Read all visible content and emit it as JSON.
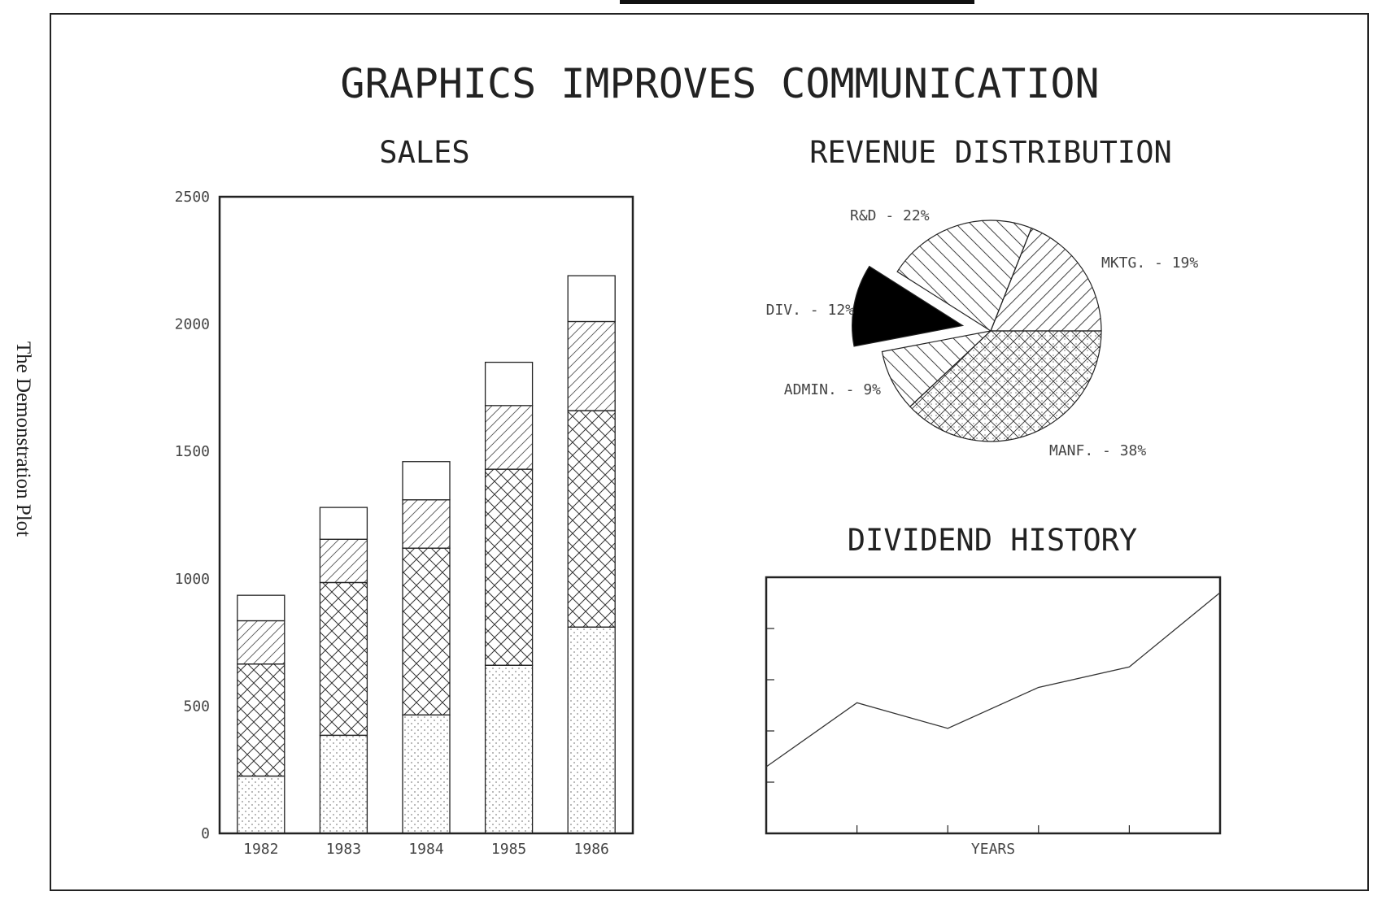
{
  "page": {
    "side_caption": "The Demonstration Plot",
    "main_title": "GRAPHICS IMPROVES COMMUNICATION"
  },
  "chart_data": [
    {
      "type": "bar",
      "stacked": true,
      "title": "SALES",
      "categories": [
        "1982",
        "1983",
        "1984",
        "1985",
        "1986"
      ],
      "ylim": [
        0,
        2500
      ],
      "yticks": [
        "0",
        "500",
        "1000",
        "1500",
        "2000",
        "2500"
      ],
      "series": [
        {
          "values": [
            225,
            385,
            465,
            660,
            810
          ],
          "pattern": "dots"
        },
        {
          "values": [
            440,
            600,
            655,
            770,
            850
          ],
          "pattern": "crosshatch"
        },
        {
          "values": [
            170,
            170,
            190,
            250,
            350
          ],
          "pattern": "diagonal"
        },
        {
          "values": [
            100,
            125,
            150,
            170,
            180
          ],
          "pattern": "none"
        }
      ]
    },
    {
      "type": "pie",
      "title": "REVENUE DISTRIBUTION",
      "slices": [
        {
          "label": "MANF. - 38%",
          "value": 38,
          "pattern": "crosshatch-dots"
        },
        {
          "label": "ADMIN. - 9%",
          "value": 9,
          "pattern": "hatch-back"
        },
        {
          "label": "DIV. - 12%",
          "value": 12,
          "pattern": "solid",
          "exploded": true
        },
        {
          "label": "R&D - 22%",
          "value": 22,
          "pattern": "hatch-back"
        },
        {
          "label": "MKTG. - 19%",
          "value": 19,
          "pattern": "hatch-fwd"
        }
      ]
    },
    {
      "type": "line",
      "title": "DIVIDEND HISTORY",
      "xlabel": "YEARS",
      "x": [
        0,
        1,
        2,
        3,
        4,
        5
      ],
      "y": [
        0.26,
        0.51,
        0.41,
        0.57,
        0.65,
        0.94
      ],
      "xlim": [
        0,
        5
      ],
      "ylim": [
        0,
        1
      ]
    }
  ]
}
